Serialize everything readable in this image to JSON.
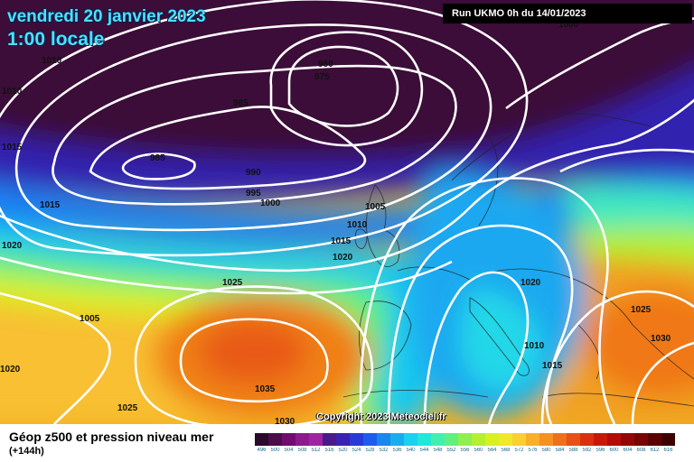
{
  "header": {
    "date": "vendredi 20 janvier 2023",
    "time": "1:00 locale",
    "run": "Run UKMO 0h du 14/01/2023"
  },
  "copyright": "Copyright 2023 Meteociel.fr",
  "footer": {
    "title": "Géop z500 et pression niveau mer",
    "subtitle": "(+144h)"
  },
  "legend": {
    "values": [
      "496",
      "500",
      "504",
      "508",
      "512",
      "516",
      "520",
      "524",
      "528",
      "532",
      "536",
      "540",
      "544",
      "548",
      "552",
      "556",
      "560",
      "564",
      "568",
      "572",
      "576",
      "580",
      "584",
      "588",
      "592",
      "596",
      "600",
      "604",
      "608",
      "612",
      "616"
    ],
    "colors": [
      "#2a0a2a",
      "#4a0d4a",
      "#6e0d6e",
      "#8b1a8b",
      "#a024a0",
      "#4a1a8a",
      "#3a22b4",
      "#2a3ad8",
      "#1e5cf0",
      "#1a86f0",
      "#17aef0",
      "#1ad2f0",
      "#22e8d8",
      "#40f0b0",
      "#60f080",
      "#8ef050",
      "#b4f030",
      "#d8f020",
      "#f0e828",
      "#f8d030",
      "#f8b028",
      "#f89020",
      "#f07018",
      "#e85014",
      "#d83010",
      "#c8180c",
      "#b40a0a",
      "#960606",
      "#780404",
      "#5a0202",
      "#3c0000"
    ]
  },
  "pressure_labels": [
    "1010",
    "1010",
    "1015",
    "1015",
    "1020",
    "1025",
    "1005",
    "1020",
    "1025",
    "1035",
    "1030",
    "980",
    "975",
    "985",
    "985",
    "990",
    "995",
    "1000",
    "1005",
    "1010",
    "1015",
    "1020",
    "1020",
    "1010",
    "1015",
    "1025",
    "1030",
    "1000"
  ]
}
